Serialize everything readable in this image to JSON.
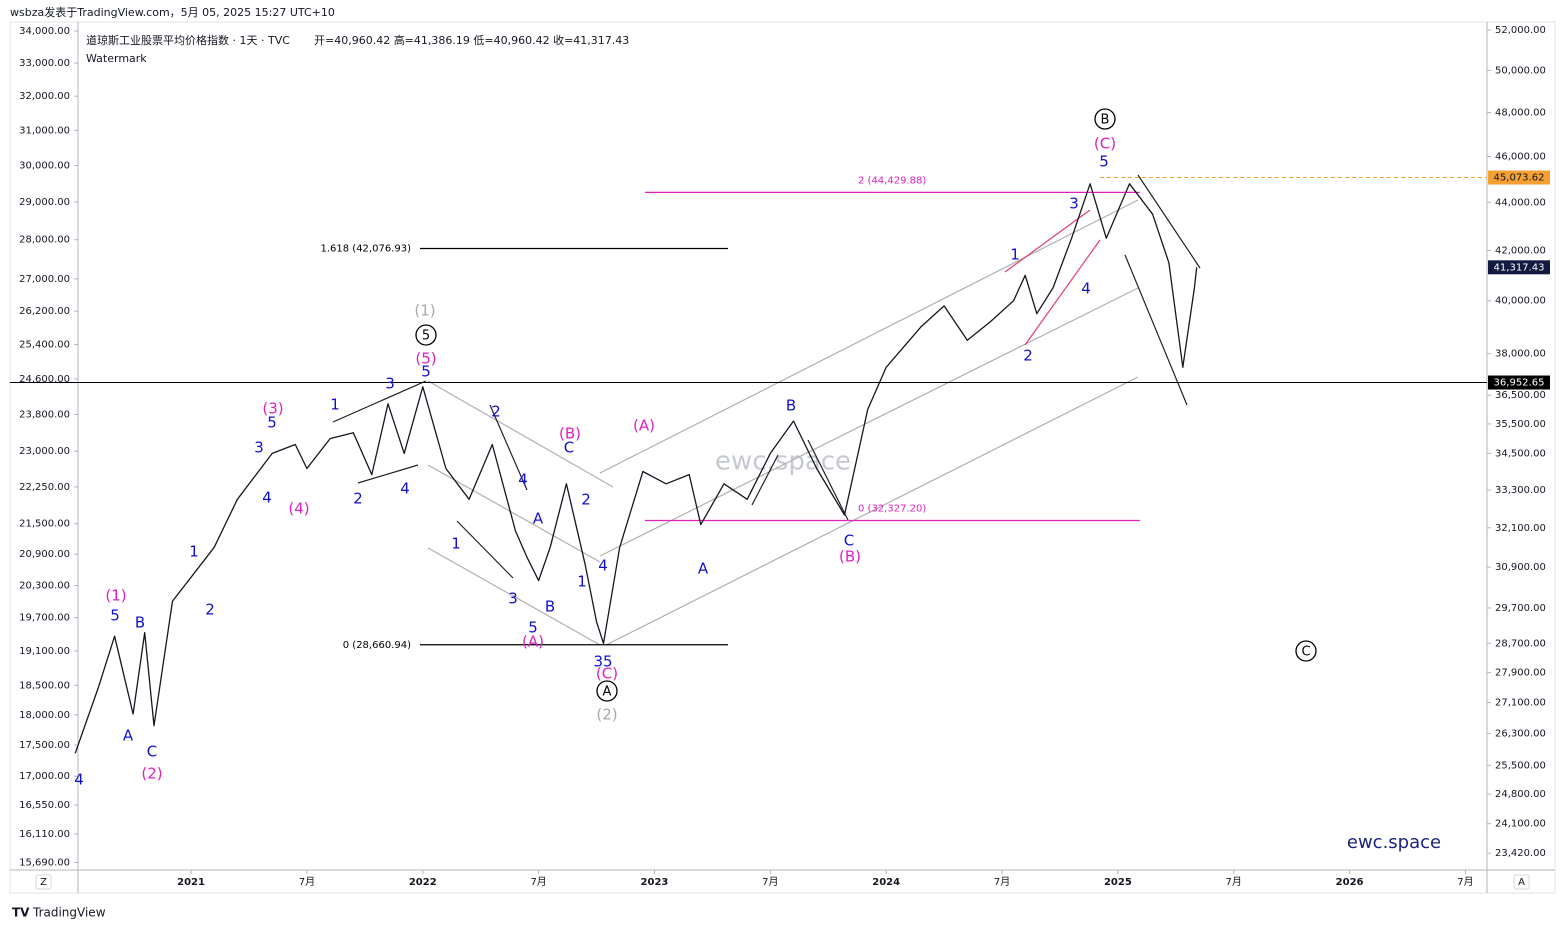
{
  "header": {
    "byline": "wsbza发表于TradingView.com，5月 05, 2025 15:27 UTC+10",
    "symbol": "道琼斯工业股票平均价格指数 · 1天 · TVC",
    "ohlc": "开=40,960.42  高=41,386.19  低=40,960.42  收=41,317.43",
    "watermark_label": "Watermark"
  },
  "footer": {
    "brand": "TradingView",
    "corner_buttons": [
      "Z",
      "A"
    ]
  },
  "chart_data": {
    "type": "line",
    "log_scale": true,
    "grid": false,
    "watermark": "ewc.space",
    "signature": "ewc.space",
    "xlim": [
      2020.512,
      2026.593
    ],
    "xticks": [
      2021,
      {
        "value": 2021.5,
        "label": "7月"
      },
      2022,
      {
        "value": 2022.5,
        "label": "7月"
      },
      2023,
      {
        "value": 2023.5,
        "label": "7月"
      },
      2024,
      {
        "value": 2024.5,
        "label": "7月"
      },
      2025,
      {
        "value": 2025.5,
        "label": "7月"
      },
      2026,
      {
        "value": 2026.5,
        "label": "7月"
      }
    ],
    "ylim": [
      15580,
      34286
    ],
    "yticks": [
      {
        "value": 34000,
        "label": "34,000.00"
      },
      {
        "value": 33000,
        "label": "33,000.00"
      },
      {
        "value": 32000,
        "label": "32,000.00"
      },
      {
        "value": 31000,
        "label": "31,000.00"
      },
      {
        "value": 30000,
        "label": "30,000.00"
      },
      {
        "value": 29000,
        "label": "29,000.00"
      },
      {
        "value": 28000,
        "label": "28,000.00"
      },
      {
        "value": 27000,
        "label": "27,000.00"
      },
      {
        "value": 26200,
        "label": "26,200.00"
      },
      {
        "value": 25400,
        "label": "25,400.00"
      },
      {
        "value": 24600,
        "label": "24,600.00"
      },
      {
        "value": 23800,
        "label": "23,800.00"
      },
      {
        "value": 23000,
        "label": "23,000.00"
      },
      {
        "value": 22250,
        "label": "22,250.00"
      },
      {
        "value": 21500,
        "label": "21,500.00"
      },
      {
        "value": 20900,
        "label": "20,900.00"
      },
      {
        "value": 20300,
        "label": "20,300.00"
      },
      {
        "value": 19700,
        "label": "19,700.00"
      },
      {
        "value": 19100,
        "label": "19,100.00"
      },
      {
        "value": 18500,
        "label": "18,500.00"
      },
      {
        "value": 18000,
        "label": "18,000.00"
      },
      {
        "value": 17500,
        "label": "17,500.00"
      },
      {
        "value": 17000,
        "label": "17,000.00"
      },
      {
        "value": 16550,
        "label": "16,550.00"
      },
      {
        "value": 16110,
        "label": "16,110.00"
      },
      {
        "value": 15690,
        "label": "15,690.00"
      }
    ],
    "y2lim": [
      23041,
      52404
    ],
    "y2ticks": [
      {
        "value": 52000,
        "label": "52,000.00"
      },
      {
        "value": 50000,
        "label": "50,000.00"
      },
      {
        "value": 48000,
        "label": "48,000.00"
      },
      {
        "value": 46000,
        "label": "46,000.00"
      },
      {
        "value": 44000,
        "label": "44,000.00"
      },
      {
        "value": 42000,
        "label": "42,000.00"
      },
      {
        "value": 40000,
        "label": "40,000.00"
      },
      {
        "value": 38000,
        "label": "38,000.00"
      },
      {
        "value": 36500,
        "label": "36,500.00"
      },
      {
        "value": 35500,
        "label": "35,500.00"
      },
      {
        "value": 34500,
        "label": "34,500.00"
      },
      {
        "value": 33300,
        "label": "33,300.00"
      },
      {
        "value": 32100,
        "label": "32,100.00"
      },
      {
        "value": 30900,
        "label": "30,900.00"
      },
      {
        "value": 29700,
        "label": "29,700.00"
      },
      {
        "value": 28700,
        "label": "28,700.00"
      },
      {
        "value": 27900,
        "label": "27,900.00"
      },
      {
        "value": 27100,
        "label": "27,100.00"
      },
      {
        "value": 26300,
        "label": "26,300.00"
      },
      {
        "value": 25500,
        "label": "25,500.00"
      },
      {
        "value": 24800,
        "label": "24,800.00"
      },
      {
        "value": 24100,
        "label": "24,100.00"
      },
      {
        "value": 23420,
        "label": "23,420.00"
      }
    ],
    "series": [
      {
        "color": "#131722",
        "axis": "y2",
        "x": [
          2020.5,
          2020.6,
          2020.67,
          2020.75,
          2020.8,
          2020.84,
          2020.92,
          2021.0,
          2021.1,
          2021.2,
          2021.35,
          2021.45,
          2021.5,
          2021.6,
          2021.7,
          2021.78,
          2021.85,
          2021.92,
          2022.0,
          2022.1,
          2022.2,
          2022.3,
          2022.4,
          2022.45,
          2022.5,
          2022.55,
          2022.62,
          2022.7,
          2022.75,
          2022.78,
          2022.85,
          2022.95,
          2023.05,
          2023.15,
          2023.2,
          2023.3,
          2023.4,
          2023.5,
          2023.6,
          2023.7,
          2023.82,
          2023.92,
          2024.0,
          2024.15,
          2024.25,
          2024.35,
          2024.45,
          2024.55,
          2024.6,
          2024.65,
          2024.72,
          2024.8,
          2024.88,
          2024.95,
          2025.05,
          2025.15,
          2025.22,
          2025.28,
          2025.33,
          2025.34
        ],
        "values": [
          25800,
          27500,
          28900,
          26800,
          29000,
          26500,
          29900,
          30600,
          31500,
          33000,
          34500,
          34800,
          34000,
          35000,
          35200,
          33800,
          36200,
          34500,
          36800,
          34000,
          33000,
          34800,
          32000,
          31200,
          30500,
          31500,
          33500,
          31000,
          29300,
          28700,
          31500,
          33900,
          33500,
          33800,
          32200,
          33500,
          33000,
          34500,
          35600,
          34000,
          32500,
          36000,
          37500,
          39000,
          39800,
          38500,
          39200,
          40000,
          41000,
          39500,
          40500,
          42500,
          44800,
          42500,
          44800,
          43500,
          41500,
          37500,
          40500,
          41317
        ]
      }
    ],
    "last_price": {
      "value": 41317.43,
      "label": "41,317.43",
      "color": "#131a3f"
    },
    "price_lines": [
      {
        "value": 45073.62,
        "label": "45,073.62",
        "color": "#f5a033",
        "style": "dashed"
      },
      {
        "value": 36952.65,
        "label": "36,952.65",
        "color": "#000000",
        "style": "solid"
      }
    ],
    "fib_levels": [
      {
        "value": 42076.93,
        "label": "1.618 (42,076.93)",
        "color": "#000000"
      },
      {
        "value": 28660.94,
        "label": "0 (28,660.94)",
        "color": "#000000"
      },
      {
        "value": 44429.88,
        "label": "2 (44,429.88)",
        "color": "#e020c0"
      },
      {
        "value": 32327.2,
        "label": "0 (32,327.20)",
        "color": "#e020c0"
      }
    ],
    "annotations": [
      {
        "text": "(1)",
        "color": "#e020c0"
      },
      {
        "text": "(2)",
        "color": "#e020c0"
      },
      {
        "text": "(3)",
        "color": "#e020c0"
      },
      {
        "text": "(4)",
        "color": "#e020c0"
      },
      {
        "text": "(5)",
        "color": "#e020c0"
      },
      {
        "text": "(A)",
        "color": "#e020c0"
      },
      {
        "text": "(B)",
        "color": "#e020c0"
      },
      {
        "text": "(C)",
        "color": "#e020c0"
      },
      {
        "text": "(A)",
        "color": "#e020c0"
      },
      {
        "text": "(B)",
        "color": "#e020c0"
      },
      {
        "text": "(C)",
        "color": "#e020c0"
      },
      {
        "text": "5",
        "color": "#1010d0"
      },
      {
        "text": "A",
        "color": "#1010d0"
      },
      {
        "text": "B",
        "color": "#1010d0"
      },
      {
        "text": "C",
        "color": "#1010d0"
      },
      {
        "text": "1",
        "color": "#1010d0"
      },
      {
        "text": "2",
        "color": "#1010d0"
      },
      {
        "text": "3",
        "color": "#1010d0"
      },
      {
        "text": "4",
        "color": "#1010d0"
      },
      {
        "text": "5",
        "color": "#1010d0"
      },
      {
        "text": "1",
        "color": "#1010d0"
      },
      {
        "text": "2",
        "color": "#1010d0"
      },
      {
        "text": "3",
        "color": "#1010d0"
      },
      {
        "text": "4",
        "color": "#1010d0"
      },
      {
        "text": "5",
        "color": "#1010d0"
      },
      {
        "text": "1",
        "color": "#1010d0"
      },
      {
        "text": "2",
        "color": "#1010d0"
      },
      {
        "text": "3",
        "color": "#1010d0"
      },
      {
        "text": "4",
        "color": "#1010d0"
      },
      {
        "text": "5",
        "color": "#1010d0"
      },
      {
        "text": "A",
        "color": "#1010d0"
      },
      {
        "text": "B",
        "color": "#1010d0"
      },
      {
        "text": "C",
        "color": "#1010d0"
      },
      {
        "text": "2",
        "color": "#1010d0"
      },
      {
        "text": "1",
        "color": "#1010d0"
      },
      {
        "text": "4",
        "color": "#1010d0"
      },
      {
        "text": "35",
        "color": "#1010d0"
      },
      {
        "text": "A",
        "color": "#1010d0"
      },
      {
        "text": "B",
        "color": "#1010d0"
      },
      {
        "text": "C",
        "color": "#1010d0"
      },
      {
        "text": "1",
        "color": "#1010d0"
      },
      {
        "text": "2",
        "color": "#1010d0"
      },
      {
        "text": "3",
        "color": "#1010d0"
      },
      {
        "text": "4",
        "color": "#1010d0"
      },
      {
        "text": "5",
        "color": "#1010d0"
      },
      {
        "text": "4",
        "color": "#1010d0"
      },
      {
        "text": "(1)",
        "color": "#a8a8a8"
      },
      {
        "text": "(2)",
        "color": "#a8a8a8"
      },
      {
        "text": "5",
        "color": "#000000",
        "circled": true
      },
      {
        "text": "A",
        "color": "#000000",
        "circled": true
      },
      {
        "text": "B",
        "color": "#000000",
        "circled": true
      },
      {
        "text": "C",
        "color": "#000000",
        "circled": true
      }
    ]
  }
}
